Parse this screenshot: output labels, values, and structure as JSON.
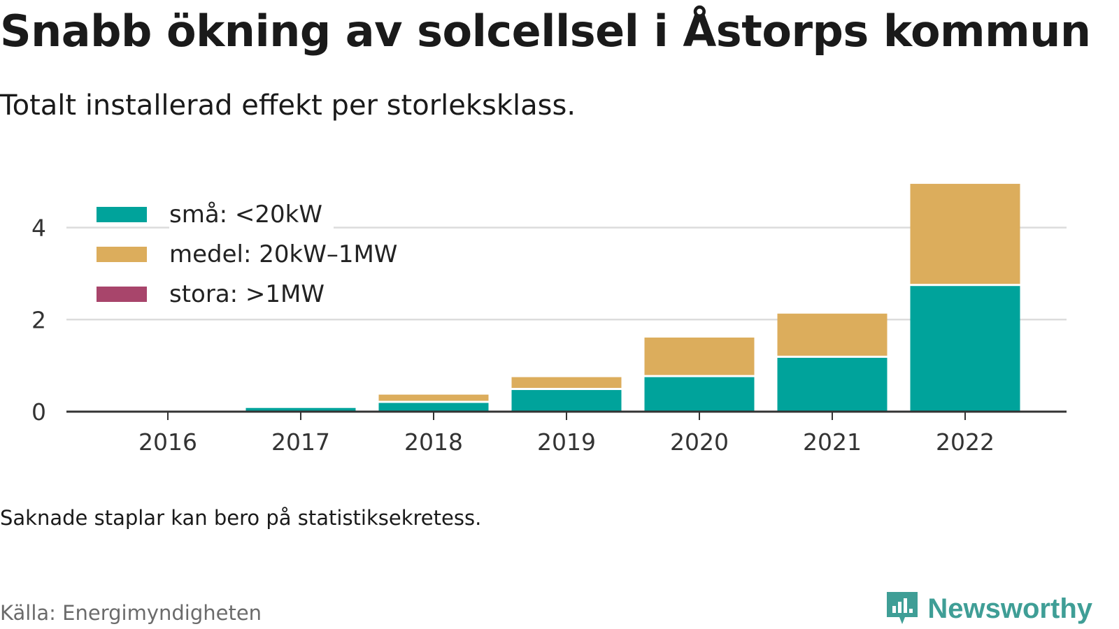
{
  "title": "Snabb ökning av solcellsel i Åstorps kommun",
  "subtitle": "Totalt installerad effekt per storleksklass.",
  "note": "Saknade staplar kan bero på statistiksekretess.",
  "source": "Källa: Energimyndigheten",
  "brand": "Newsworthy",
  "colors": {
    "brand": "#3f9e96",
    "grid": "#dcdcdc",
    "axis": "#333333"
  },
  "chart_data": {
    "type": "bar",
    "stacked": true,
    "categories": [
      "2016",
      "2017",
      "2018",
      "2019",
      "2020",
      "2021",
      "2022"
    ],
    "series": [
      {
        "name": "små: <20kW",
        "color": "#00a39b",
        "values": [
          0,
          0.08,
          0.19,
          0.47,
          0.75,
          1.17,
          2.73
        ]
      },
      {
        "name": "medel: 20kW–1MW",
        "color": "#dcad5c",
        "values": [
          0,
          0,
          0.18,
          0.28,
          0.86,
          0.96,
          2.22
        ]
      },
      {
        "name": "stora: >1MW",
        "color": "#a8456b",
        "values": [
          0,
          0,
          0,
          0,
          0,
          0,
          0
        ]
      }
    ],
    "yticks": [
      0,
      2,
      4
    ],
    "ylim": [
      0,
      5.3
    ],
    "grid": true,
    "legend_position": "top-left"
  }
}
